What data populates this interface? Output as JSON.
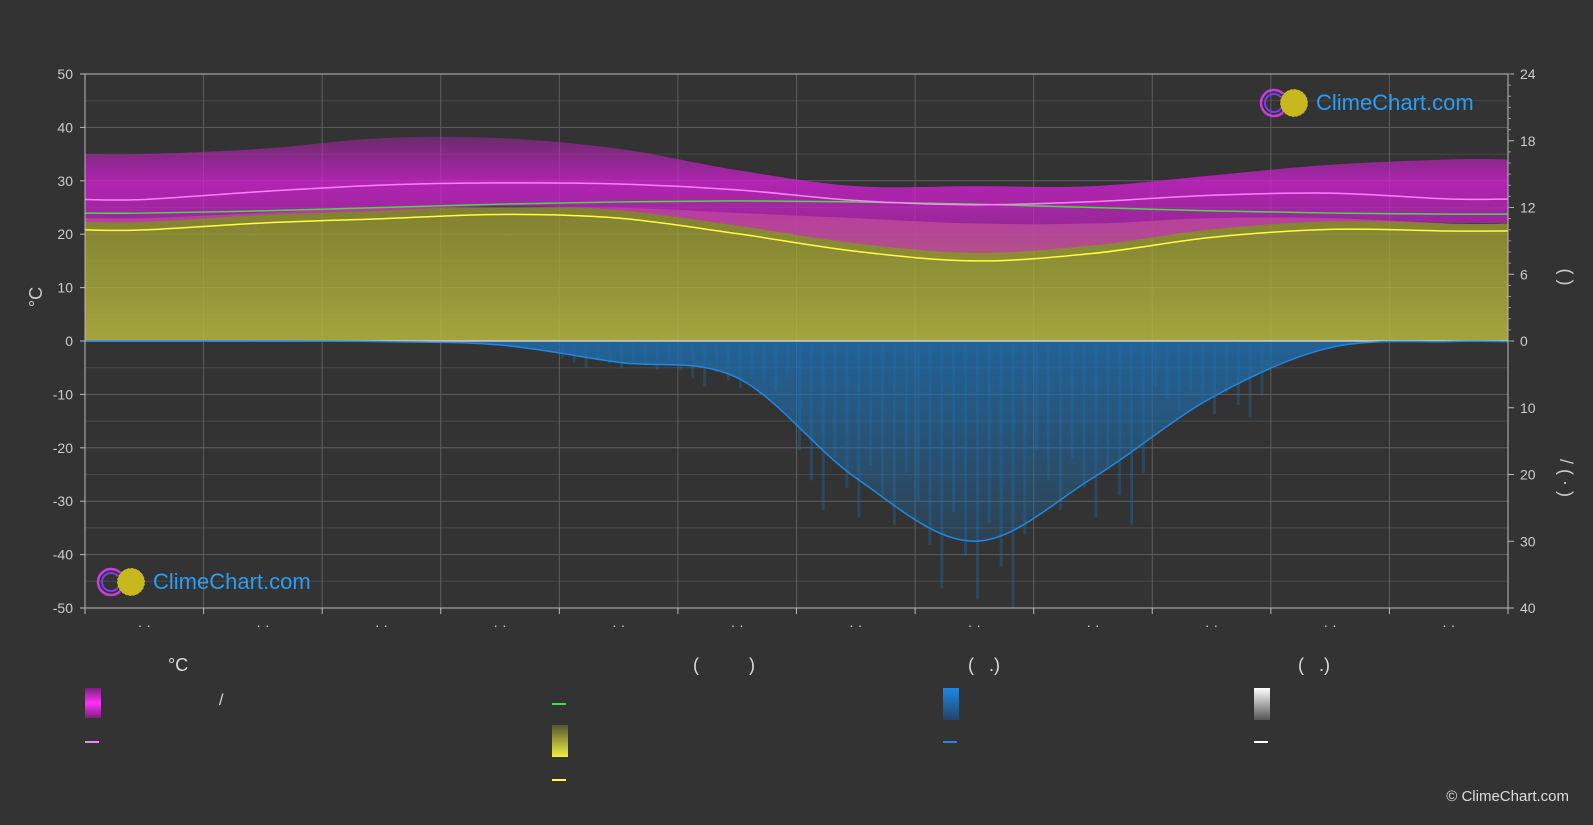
{
  "chart_data": {
    "type": "area",
    "yaxis_left": {
      "label": "°C",
      "ticks": [
        "50",
        "40",
        "30",
        "20",
        "10",
        "0",
        "-10",
        "-20",
        "-30",
        "-40",
        "-50"
      ],
      "ylim": [
        -50,
        50
      ]
    },
    "yaxis_right_top": {
      "ticks": [
        "24",
        "18",
        "12",
        "6",
        "0"
      ],
      "label_fragment": "(        )"
    },
    "yaxis_right_bottom": {
      "ticks": [
        "10",
        "20",
        "30",
        "40"
      ],
      "label_fragment": "/   (  ·  )"
    },
    "x_tick_labels": [
      "· ·",
      "· ·",
      "· ·",
      "· ·",
      "· ·",
      "· ·",
      "· ·",
      "· ·",
      "· ·",
      "· ·",
      "· ·",
      "· ·"
    ],
    "months": [
      1,
      2,
      3,
      4,
      5,
      6,
      7,
      8,
      9,
      10,
      11,
      12
    ],
    "series": [
      {
        "key": "avg_max_temp",
        "color": "#ff80ff",
        "values": [
          26.5,
          28.0,
          29.2,
          29.6,
          29.4,
          28.3,
          26.3,
          25.5,
          26.1,
          27.3,
          27.7,
          26.6
        ]
      },
      {
        "key": "avg_min_temp",
        "color": "#ffff40",
        "values": [
          20.8,
          22.1,
          22.9,
          23.7,
          23.0,
          20.1,
          16.8,
          15.0,
          16.4,
          19.4,
          20.9,
          20.6
        ]
      },
      {
        "key": "daylight_hours",
        "color": "#44dd44",
        "values": [
          11.5,
          11.7,
          12.0,
          12.3,
          12.5,
          12.6,
          12.5,
          12.3,
          12.0,
          11.7,
          11.5,
          11.4
        ]
      },
      {
        "key": "precipitation_mm",
        "color": "#1e88e5",
        "values": [
          0.0,
          0.0,
          0.1,
          0.6,
          3.2,
          5.5,
          20.5,
          30.0,
          20.5,
          8.5,
          1.0,
          0.1
        ]
      }
    ],
    "band_max_temp": {
      "color": "#d020d0",
      "top": [
        35,
        36,
        38,
        38,
        36,
        32,
        29,
        29,
        29,
        31,
        33,
        34
      ]
    },
    "band_sunshine": {
      "color": "#b8b840",
      "top": [
        23,
        24,
        25,
        25,
        25,
        24,
        23,
        22,
        22,
        23,
        23,
        22
      ]
    }
  },
  "legend": {
    "head_temp": "°C",
    "head_sun": "(          )",
    "head_rain": "(   .)",
    "head_snow": "(   .)",
    "slash": "/"
  },
  "logos": {
    "text": "ClimeChart.com"
  },
  "copyright": "© ClimeChart.com",
  "colors": {
    "background": "#333333",
    "grid": "#5a5a5a",
    "temp_band": "#d020d0",
    "sunshine_band": "#b8b840",
    "rain_band": "#1e6fb0",
    "max_line": "#ff80ff",
    "min_line": "#ffff40",
    "daylight_line": "#44dd44",
    "rain_line": "#1e88e5",
    "snow_line": "#ffffff"
  }
}
